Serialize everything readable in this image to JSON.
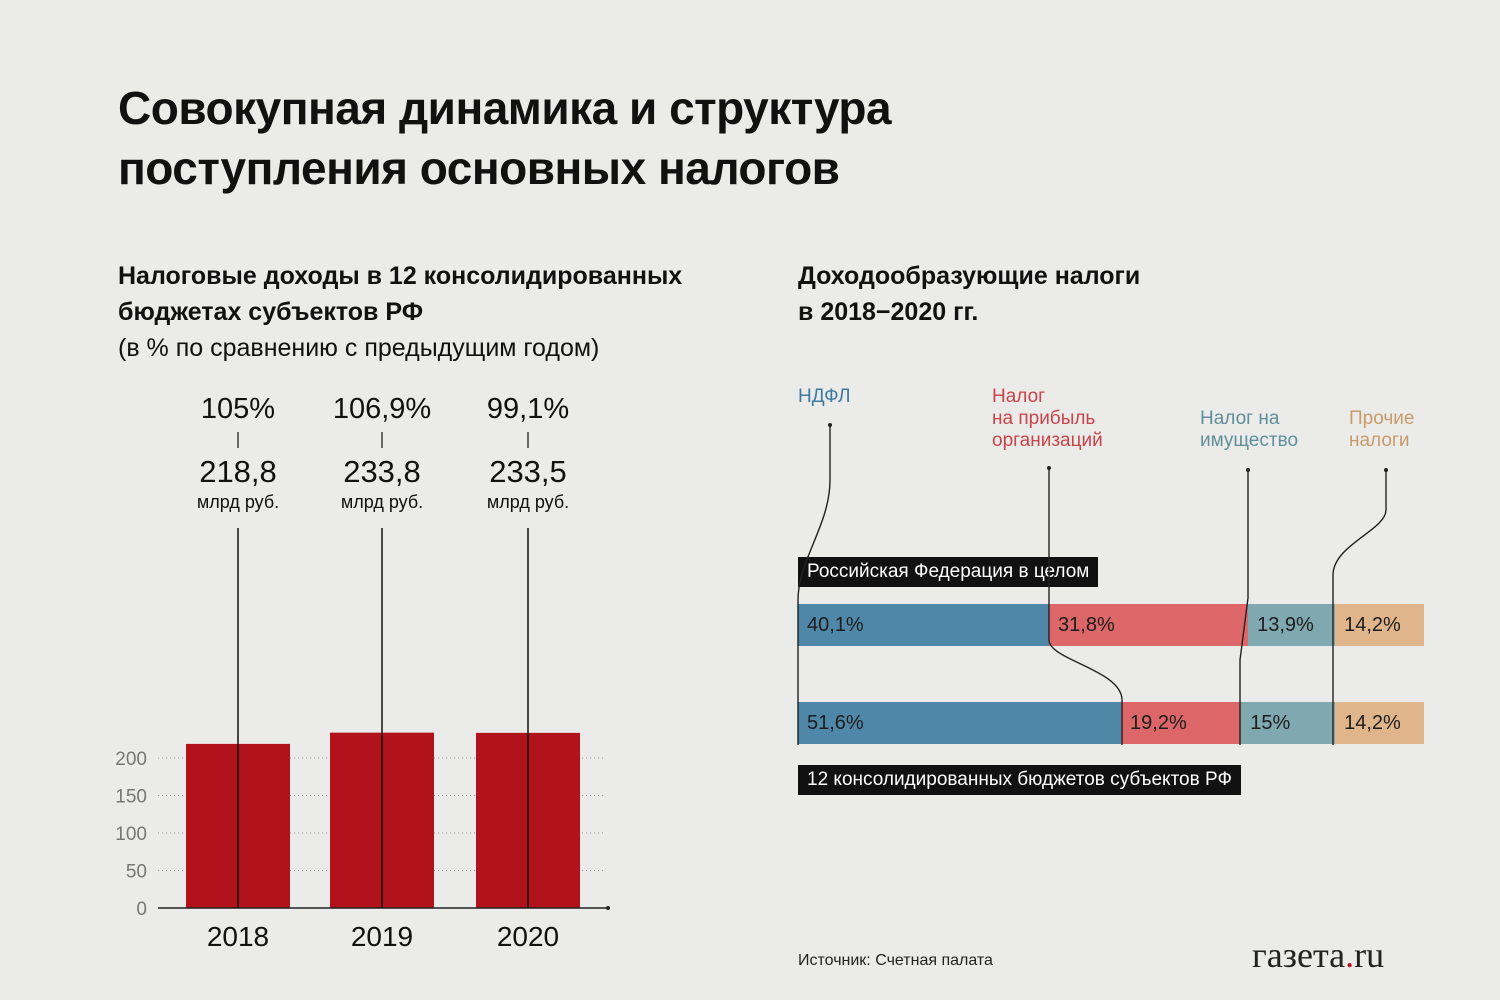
{
  "title": {
    "line1": "Совокупная динамика и структура",
    "line2": "поступления основных налогов"
  },
  "left_chart": {
    "title_line1": "Налоговые доходы в 12 консолидированных",
    "title_line2": "бюджетах субъектов РФ",
    "subtitle": "(в % по сравнению с предыдущим годом)",
    "unit": "млрд руб."
  },
  "right_chart": {
    "title_line1": "Доходообразующие налоги",
    "title_line2": "в 2018−2020 гг.",
    "row1_label": "Российская Федерация в целом",
    "row2_label": "12 консолидированных бюджетов субъектов РФ"
  },
  "source": "Источник: Счетная палата",
  "logo": {
    "main": "газета",
    "dot": ".",
    "tld": "ru"
  },
  "colors": {
    "bar": "#b1121b",
    "ndfl": "#4f87a9",
    "profit": "#dc6668",
    "property": "#7fa8b0",
    "other": "#e1b58c",
    "background": "#ebebea"
  },
  "chart_data": [
    {
      "type": "bar",
      "categories": [
        "2018",
        "2019",
        "2020"
      ],
      "values": [
        218.8,
        233.8,
        233.5
      ],
      "value_labels": [
        "218,8",
        "233,8",
        "233,5"
      ],
      "percent_labels": [
        "105%",
        "106,9%",
        "99,1%"
      ],
      "percent_values": [
        105,
        106.9,
        99.1
      ],
      "yticks": [
        "0",
        "50",
        "100",
        "150",
        "200"
      ],
      "ytick_values": [
        0,
        50,
        100,
        150,
        200
      ],
      "ylim": [
        0,
        235
      ],
      "grid": true
    },
    {
      "type": "bar",
      "orientation": "horizontal-stacked",
      "categories": [
        "Российская Федерация в целом",
        "12 консолидированных бюджетов субъектов РФ"
      ],
      "series": [
        {
          "name": "НДФЛ",
          "name_lines": [
            "НДФЛ"
          ],
          "color": "#4f87a9",
          "values": [
            40.1,
            51.6
          ],
          "labels": [
            "40,1%",
            "51,6%"
          ]
        },
        {
          "name": "Налог на прибыль организаций",
          "name_lines": [
            "Налог",
            "на прибыль",
            "организаций"
          ],
          "color": "#dc6668",
          "values": [
            31.8,
            19.2
          ],
          "labels": [
            "31,8%",
            "19,2%"
          ]
        },
        {
          "name": "Налог на имущество",
          "name_lines": [
            "Налог на",
            "имущество"
          ],
          "color": "#7fa8b0",
          "values": [
            13.9,
            15
          ],
          "labels": [
            "13,9%",
            "15%"
          ]
        },
        {
          "name": "Прочие налоги",
          "name_lines": [
            "Прочие",
            "налоги"
          ],
          "color": "#e1b58c",
          "values": [
            14.2,
            14.2
          ],
          "labels": [
            "14,2%",
            "14,2%"
          ]
        }
      ]
    }
  ]
}
